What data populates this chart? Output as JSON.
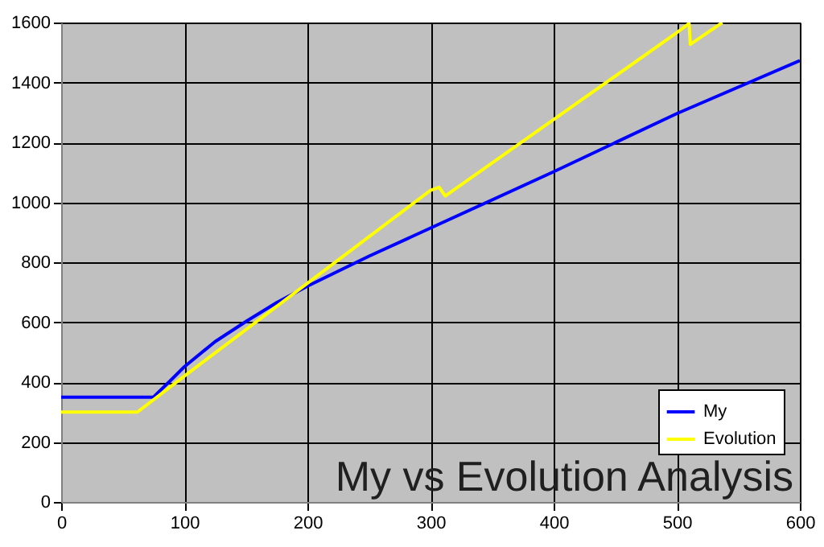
{
  "chart_data": {
    "type": "line",
    "title": "My vs Evolution Analysis",
    "series": [
      {
        "name": "My",
        "color": "#0000ff",
        "x": [
          0,
          75,
          90,
          100,
          125,
          150,
          175,
          200,
          250,
          300,
          400,
          500,
          600
        ],
        "values": [
          350,
          350,
          410,
          451,
          535,
          602,
          665,
          720,
          820,
          914,
          1102,
          1296,
          1473
        ]
      },
      {
        "name": "Evolution",
        "color": "#ffff00",
        "x": [
          0,
          62,
          100,
          200,
          300,
          307,
          312,
          400,
          500,
          510,
          511,
          537
        ],
        "values": [
          300,
          300,
          420,
          730,
          1040,
          1050,
          1021,
          1276,
          1566,
          1597,
          1527,
          1600
        ]
      }
    ],
    "xlim": [
      0,
      600
    ],
    "xticks": [
      0,
      100,
      200,
      300,
      400,
      500,
      600
    ],
    "ylim": [
      0,
      1600
    ],
    "yticks": [
      0,
      200,
      400,
      600,
      800,
      1000,
      1200,
      1400,
      1600
    ],
    "grid": true,
    "legend": "bottom right",
    "marker": "none",
    "line_style": "solid"
  }
}
